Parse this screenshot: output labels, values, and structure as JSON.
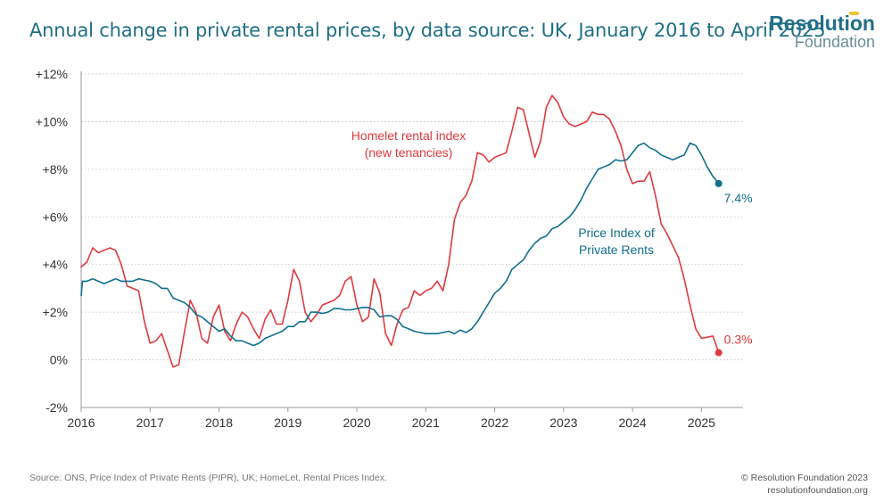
{
  "header": {
    "title": "Annual change in private rental prices, by data source: UK, January 2016 to April 2025"
  },
  "logo": {
    "top": "Resolution",
    "bottom": "Foundation"
  },
  "footer": {
    "source": "Source: ONS, Price Index of Private Rents (PIPR), UK; HomeLet, Rental Prices Index.",
    "copyright": "© Resolution Foundation 2023",
    "site": "resolutionfoundation.org"
  },
  "colors": {
    "title": "#1f6f86",
    "homelet": "#e03a3e",
    "pipr": "#0f6f8f",
    "grid": "#bdbdbd"
  },
  "chart_data": {
    "type": "line",
    "title": "Annual change in private rental prices, by data source: UK, January 2016 to April 2025",
    "xlabel": "",
    "ylabel": "",
    "xlim": [
      2016,
      2025.5
    ],
    "ylim": [
      -2,
      12
    ],
    "x_ticks": [
      2016,
      2017,
      2018,
      2019,
      2020,
      2021,
      2022,
      2023,
      2024,
      2025
    ],
    "x_tick_labels": [
      "2016",
      "2017",
      "2018",
      "2019",
      "2020",
      "2021",
      "2022",
      "2023",
      "2024",
      "2025"
    ],
    "y_ticks": [
      -2,
      0,
      2,
      4,
      6,
      8,
      10,
      12
    ],
    "y_tick_labels": [
      "-2%",
      "0%",
      "+2%",
      "+4%",
      "+6%",
      "+8%",
      "+10%",
      "+12%"
    ],
    "grid": "horizontal dotted",
    "series": [
      {
        "name": "Homelet rental index (new tenancies)",
        "label_lines": [
          "Homelet rental index",
          "(new tenancies)"
        ],
        "color": "#e03a3e",
        "end_label": "0.3%",
        "points": [
          [
            2016.0,
            3.9
          ],
          [
            2016.083,
            4.1
          ],
          [
            2016.167,
            4.7
          ],
          [
            2016.25,
            4.5
          ],
          [
            2016.333,
            4.6
          ],
          [
            2016.417,
            4.7
          ],
          [
            2016.5,
            4.6
          ],
          [
            2016.583,
            4.0
          ],
          [
            2016.667,
            3.1
          ],
          [
            2016.75,
            3.0
          ],
          [
            2016.833,
            2.9
          ],
          [
            2016.917,
            1.6
          ],
          [
            2017.0,
            0.7
          ],
          [
            2017.083,
            0.8
          ],
          [
            2017.167,
            1.1
          ],
          [
            2017.25,
            0.4
          ],
          [
            2017.333,
            -0.3
          ],
          [
            2017.417,
            -0.2
          ],
          [
            2017.5,
            1.2
          ],
          [
            2017.583,
            2.5
          ],
          [
            2017.667,
            2.0
          ],
          [
            2017.75,
            0.9
          ],
          [
            2017.833,
            0.7
          ],
          [
            2017.917,
            1.8
          ],
          [
            2018.0,
            2.3
          ],
          [
            2018.083,
            1.2
          ],
          [
            2018.167,
            0.8
          ],
          [
            2018.25,
            1.5
          ],
          [
            2018.333,
            2.0
          ],
          [
            2018.417,
            1.8
          ],
          [
            2018.5,
            1.3
          ],
          [
            2018.583,
            0.9
          ],
          [
            2018.667,
            1.7
          ],
          [
            2018.75,
            2.1
          ],
          [
            2018.833,
            1.5
          ],
          [
            2018.917,
            1.5
          ],
          [
            2019.0,
            2.5
          ],
          [
            2019.083,
            3.8
          ],
          [
            2019.167,
            3.3
          ],
          [
            2019.25,
            2.0
          ],
          [
            2019.333,
            1.6
          ],
          [
            2019.417,
            1.9
          ],
          [
            2019.5,
            2.3
          ],
          [
            2019.583,
            2.4
          ],
          [
            2019.667,
            2.5
          ],
          [
            2019.75,
            2.7
          ],
          [
            2019.833,
            3.3
          ],
          [
            2019.917,
            3.5
          ],
          [
            2020.0,
            2.3
          ],
          [
            2020.083,
            1.6
          ],
          [
            2020.167,
            1.8
          ],
          [
            2020.25,
            3.4
          ],
          [
            2020.333,
            2.8
          ],
          [
            2020.417,
            1.1
          ],
          [
            2020.5,
            0.6
          ],
          [
            2020.583,
            1.5
          ],
          [
            2020.667,
            2.1
          ],
          [
            2020.75,
            2.2
          ],
          [
            2020.833,
            2.9
          ],
          [
            2020.917,
            2.7
          ],
          [
            2021.0,
            2.9
          ],
          [
            2021.083,
            3.0
          ],
          [
            2021.167,
            3.3
          ],
          [
            2021.25,
            2.9
          ],
          [
            2021.333,
            4.0
          ],
          [
            2021.417,
            5.9
          ],
          [
            2021.5,
            6.6
          ],
          [
            2021.583,
            6.9
          ],
          [
            2021.667,
            7.5
          ],
          [
            2021.75,
            8.7
          ],
          [
            2021.833,
            8.6
          ],
          [
            2021.917,
            8.3
          ],
          [
            2022.0,
            8.5
          ],
          [
            2022.083,
            8.6
          ],
          [
            2022.167,
            8.7
          ],
          [
            2022.25,
            9.6
          ],
          [
            2022.333,
            10.6
          ],
          [
            2022.417,
            10.5
          ],
          [
            2022.5,
            9.5
          ],
          [
            2022.583,
            8.5
          ],
          [
            2022.667,
            9.2
          ],
          [
            2022.75,
            10.6
          ],
          [
            2022.833,
            11.1
          ],
          [
            2022.917,
            10.8
          ],
          [
            2023.0,
            10.2
          ],
          [
            2023.083,
            9.9
          ],
          [
            2023.167,
            9.8
          ],
          [
            2023.25,
            9.9
          ],
          [
            2023.333,
            10.0
          ],
          [
            2023.417,
            10.4
          ],
          [
            2023.5,
            10.3
          ],
          [
            2023.583,
            10.3
          ],
          [
            2023.667,
            10.1
          ],
          [
            2023.75,
            9.6
          ],
          [
            2023.833,
            9.0
          ],
          [
            2023.917,
            8.0
          ],
          [
            2024.0,
            7.4
          ],
          [
            2024.083,
            7.5
          ],
          [
            2024.167,
            7.5
          ],
          [
            2024.25,
            7.9
          ],
          [
            2024.333,
            6.9
          ],
          [
            2024.417,
            5.7
          ],
          [
            2024.5,
            5.3
          ],
          [
            2024.583,
            4.8
          ],
          [
            2024.667,
            4.3
          ],
          [
            2024.75,
            3.4
          ],
          [
            2024.833,
            2.3
          ],
          [
            2024.917,
            1.3
          ],
          [
            2025.0,
            0.9
          ],
          [
            2025.083,
            0.95
          ],
          [
            2025.167,
            1.0
          ],
          [
            2025.25,
            0.3
          ]
        ]
      },
      {
        "name": "Price Index of Private Rents",
        "label_lines": [
          "Price Index of",
          "Private Rents"
        ],
        "color": "#0f6f8f",
        "end_label": "7.4%",
        "points": [
          [
            2016.0,
            2.7
          ],
          [
            2016.02,
            3.3
          ],
          [
            2016.083,
            3.3
          ],
          [
            2016.167,
            3.4
          ],
          [
            2016.25,
            3.3
          ],
          [
            2016.333,
            3.2
          ],
          [
            2016.417,
            3.3
          ],
          [
            2016.5,
            3.4
          ],
          [
            2016.583,
            3.3
          ],
          [
            2016.667,
            3.3
          ],
          [
            2016.75,
            3.3
          ],
          [
            2016.833,
            3.4
          ],
          [
            2016.917,
            3.35
          ],
          [
            2017.0,
            3.3
          ],
          [
            2017.083,
            3.2
          ],
          [
            2017.167,
            3.0
          ],
          [
            2017.25,
            3.0
          ],
          [
            2017.333,
            2.6
          ],
          [
            2017.417,
            2.5
          ],
          [
            2017.5,
            2.4
          ],
          [
            2017.583,
            2.2
          ],
          [
            2017.667,
            1.9
          ],
          [
            2017.75,
            1.8
          ],
          [
            2017.833,
            1.6
          ],
          [
            2017.917,
            1.4
          ],
          [
            2018.0,
            1.2
          ],
          [
            2018.083,
            1.3
          ],
          [
            2018.167,
            1.0
          ],
          [
            2018.25,
            0.8
          ],
          [
            2018.333,
            0.8
          ],
          [
            2018.417,
            0.7
          ],
          [
            2018.5,
            0.6
          ],
          [
            2018.583,
            0.7
          ],
          [
            2018.667,
            0.9
          ],
          [
            2018.75,
            1.0
          ],
          [
            2018.833,
            1.1
          ],
          [
            2018.917,
            1.2
          ],
          [
            2019.0,
            1.4
          ],
          [
            2019.083,
            1.4
          ],
          [
            2019.167,
            1.6
          ],
          [
            2019.25,
            1.6
          ],
          [
            2019.333,
            2.0
          ],
          [
            2019.417,
            2.0
          ],
          [
            2019.5,
            1.95
          ],
          [
            2019.583,
            2.0
          ],
          [
            2019.667,
            2.15
          ],
          [
            2019.75,
            2.15
          ],
          [
            2019.833,
            2.1
          ],
          [
            2019.917,
            2.1
          ],
          [
            2020.0,
            2.15
          ],
          [
            2020.083,
            2.2
          ],
          [
            2020.167,
            2.2
          ],
          [
            2020.25,
            2.1
          ],
          [
            2020.333,
            1.8
          ],
          [
            2020.417,
            1.85
          ],
          [
            2020.5,
            1.85
          ],
          [
            2020.583,
            1.7
          ],
          [
            2020.667,
            1.4
          ],
          [
            2020.75,
            1.3
          ],
          [
            2020.833,
            1.2
          ],
          [
            2020.917,
            1.15
          ],
          [
            2021.0,
            1.1
          ],
          [
            2021.083,
            1.1
          ],
          [
            2021.167,
            1.1
          ],
          [
            2021.25,
            1.15
          ],
          [
            2021.333,
            1.2
          ],
          [
            2021.417,
            1.1
          ],
          [
            2021.5,
            1.25
          ],
          [
            2021.583,
            1.15
          ],
          [
            2021.667,
            1.3
          ],
          [
            2021.75,
            1.6
          ],
          [
            2021.833,
            2.0
          ],
          [
            2021.917,
            2.4
          ],
          [
            2022.0,
            2.8
          ],
          [
            2022.083,
            3.0
          ],
          [
            2022.167,
            3.3
          ],
          [
            2022.25,
            3.8
          ],
          [
            2022.333,
            4.0
          ],
          [
            2022.417,
            4.2
          ],
          [
            2022.5,
            4.6
          ],
          [
            2022.583,
            4.9
          ],
          [
            2022.667,
            5.1
          ],
          [
            2022.75,
            5.2
          ],
          [
            2022.833,
            5.5
          ],
          [
            2022.917,
            5.6
          ],
          [
            2023.0,
            5.8
          ],
          [
            2023.083,
            6.0
          ],
          [
            2023.167,
            6.3
          ],
          [
            2023.25,
            6.7
          ],
          [
            2023.333,
            7.2
          ],
          [
            2023.417,
            7.6
          ],
          [
            2023.5,
            8.0
          ],
          [
            2023.583,
            8.1
          ],
          [
            2023.667,
            8.2
          ],
          [
            2023.75,
            8.4
          ],
          [
            2023.833,
            8.35
          ],
          [
            2023.917,
            8.4
          ],
          [
            2024.0,
            8.7
          ],
          [
            2024.083,
            9.0
          ],
          [
            2024.167,
            9.1
          ],
          [
            2024.25,
            8.9
          ],
          [
            2024.333,
            8.8
          ],
          [
            2024.417,
            8.6
          ],
          [
            2024.5,
            8.5
          ],
          [
            2024.583,
            8.4
          ],
          [
            2024.667,
            8.5
          ],
          [
            2024.75,
            8.6
          ],
          [
            2024.833,
            9.1
          ],
          [
            2024.917,
            9.0
          ],
          [
            2025.0,
            8.6
          ],
          [
            2025.083,
            8.1
          ],
          [
            2025.167,
            7.7
          ],
          [
            2025.25,
            7.4
          ]
        ]
      }
    ]
  }
}
